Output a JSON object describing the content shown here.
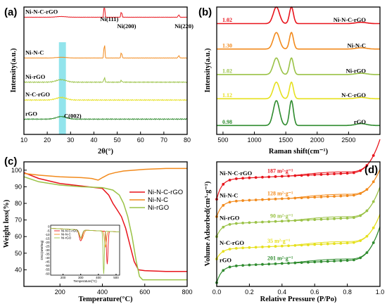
{
  "colors": {
    "NiNCrGO": "#e8141c",
    "NiNC": "#f28a1c",
    "NirGO": "#9ac246",
    "NCrGO": "#e6e01e",
    "rGO": "#2e8b2e",
    "highlight": "#6ddbe6"
  },
  "chart_data": [
    {
      "id": "a",
      "panel_label": "(a)",
      "type": "line",
      "xlabel": "2θ(°)",
      "ylabel": "Intensity(a.u.)",
      "xlim": [
        10,
        80
      ],
      "xticks": [
        10,
        20,
        30,
        40,
        50,
        60,
        70,
        80
      ],
      "highlight_band": [
        25,
        28
      ],
      "series": [
        {
          "name": "Ni-N-C-rGO",
          "color_key": "NiNCrGO",
          "offset": 0.92,
          "kind": "ni"
        },
        {
          "name": "Ni-N-C",
          "color_key": "NiNC",
          "offset": 0.6,
          "kind": "ni"
        },
        {
          "name": "Ni-rGO",
          "color_key": "NirGO",
          "offset": 0.41,
          "kind": "ni_small"
        },
        {
          "name": "N-C-rGO",
          "color_key": "NCrGO",
          "offset": 0.27,
          "kind": "c"
        },
        {
          "name": "rGO",
          "color_key": "rGO",
          "offset": 0.12,
          "kind": "c"
        }
      ],
      "peak_labels": [
        {
          "text": "Ni(111)",
          "x": 44.5
        },
        {
          "text": "Ni(200)",
          "x": 51.8
        },
        {
          "text": "Ni(220)",
          "x": 76.4
        },
        {
          "text": "C(002)",
          "x": 26
        }
      ]
    },
    {
      "id": "b",
      "panel_label": "(b)",
      "type": "line",
      "xlabel": "Raman shift(cm⁻¹)",
      "ylabel": "Intensity(a.u.)",
      "xlim": [
        400,
        3000
      ],
      "xticks": [
        500,
        1000,
        1500,
        2000,
        2500
      ],
      "series": [
        {
          "name": "Ni-N-C-rGO",
          "ratio": "1.02",
          "color_key": "NiNCrGO",
          "offset": 0.85
        },
        {
          "name": "Ni-N-C",
          "ratio": "1.30",
          "color_key": "NiNC",
          "offset": 0.65
        },
        {
          "name": "Ni-rGO",
          "ratio": "1.02",
          "color_key": "NirGO",
          "offset": 0.45
        },
        {
          "name": "N-C-rGO",
          "ratio": "1.12",
          "color_key": "NCrGO",
          "offset": 0.26
        },
        {
          "name": "rGO",
          "ratio": "0.98",
          "color_key": "rGO",
          "offset": 0.05
        }
      ]
    },
    {
      "id": "c",
      "panel_label": "(c)",
      "type": "line",
      "xlabel": "Temperature(°C)",
      "ylabel": "Weight loss(%)",
      "xlim": [
        30,
        800
      ],
      "ylim": [
        30,
        105
      ],
      "xticks": [
        200,
        400,
        600,
        800
      ],
      "yticks": [
        40,
        50,
        60,
        70,
        80,
        90,
        100
      ],
      "legend_position": "right",
      "series": [
        {
          "name": "Ni-N-C-rGO",
          "color_key": "NiNCrGO",
          "x": [
            30,
            100,
            200,
            300,
            400,
            430,
            450,
            470,
            490,
            510,
            530,
            550,
            570,
            600,
            700,
            800
          ],
          "y": [
            98.5,
            95,
            92,
            90.5,
            89,
            85,
            80,
            76,
            72,
            65,
            55,
            45,
            40,
            39.5,
            39,
            39
          ]
        },
        {
          "name": "Ni-N-C",
          "color_key": "NiNC",
          "x": [
            30,
            100,
            200,
            300,
            350,
            380,
            400,
            430,
            460,
            500,
            600,
            700,
            800
          ],
          "y": [
            98,
            97,
            96,
            95.5,
            95,
            94,
            95.5,
            97.5,
            98.5,
            99.5,
            100.5,
            101,
            101
          ]
        },
        {
          "name": "Ni-rGO",
          "color_key": "NirGO",
          "x": [
            30,
            100,
            200,
            300,
            400,
            450,
            480,
            500,
            520,
            540,
            560,
            575,
            590,
            700,
            800
          ],
          "y": [
            96,
            93,
            91,
            90,
            89.5,
            88,
            85,
            80,
            72,
            60,
            45,
            36,
            34,
            34,
            34
          ]
        }
      ],
      "inset": {
        "type": "line",
        "xlabel": "Temperature(°C)",
        "ylabel": "DSC(mW/mg)",
        "xticks": [
          200,
          300,
          400,
          500
        ],
        "yticks": [
          0,
          -5,
          -10,
          -15,
          -20,
          -25,
          -30,
          -35,
          -40,
          -45,
          -50,
          -55,
          -60
        ],
        "xlim": [
          130,
          520
        ],
        "ylim": [
          -62,
          2
        ],
        "legend": [
          "Ni-N-C-rGO",
          "Ni-N-C",
          "Ni-rGO"
        ]
      }
    },
    {
      "id": "d",
      "panel_label": "(d)",
      "type": "line",
      "xlabel": "Relative Pressure (P/Po)",
      "ylabel": "Volume Adsorbed(cm³·g⁻¹)",
      "xlim": [
        0,
        1.0
      ],
      "xticks": [
        0.0,
        0.2,
        0.4,
        0.6,
        0.8,
        1.0
      ],
      "series": [
        {
          "name": "Ni-N-C-rGO",
          "area": "187 m²·g⁻¹",
          "color_key": "NiNCrGO",
          "base": 0.7,
          "slope": 0.16,
          "tail": 0.26
        },
        {
          "name": "Ni-N-C",
          "area": "128 m²·g⁻¹",
          "color_key": "NiNC",
          "base": 0.56,
          "slope": 0.12,
          "tail": 0.2
        },
        {
          "name": "Ni-rGO",
          "area": "90 m²·g⁻¹",
          "color_key": "NirGO",
          "base": 0.4,
          "slope": 0.1,
          "tail": 0.24
        },
        {
          "name": "N-C-rGO",
          "area": "35 m²·g⁻¹",
          "color_key": "NCrGO",
          "base": 0.22,
          "slope": 0.08,
          "tail": 0.22
        },
        {
          "name": "rGO",
          "area": "201 m²·g⁻¹",
          "color_key": "rGO",
          "base": 0.03,
          "slope": 0.13,
          "tail": 0.26
        }
      ]
    }
  ]
}
